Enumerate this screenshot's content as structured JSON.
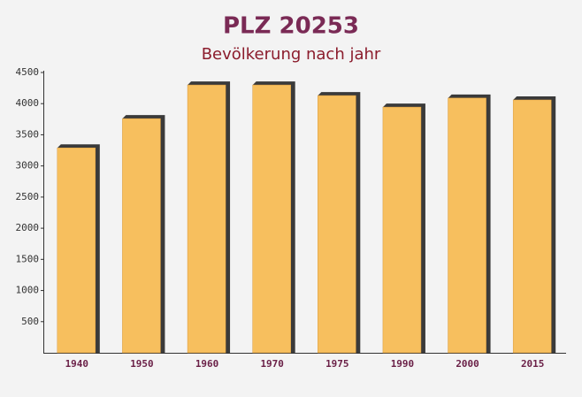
{
  "chart_data": {
    "type": "bar",
    "title": "PLZ 20253",
    "subtitle": "Bevölkerung nach jahr",
    "categories": [
      "1940",
      "1950",
      "1960",
      "1970",
      "1975",
      "1990",
      "2000",
      "2015"
    ],
    "values": [
      3290,
      3760,
      4300,
      4300,
      4130,
      3945,
      4090,
      4060
    ],
    "color": "#f7bf5e",
    "ylim": [
      0,
      4500
    ],
    "yticks": [
      500,
      1000,
      1500,
      2000,
      2500,
      3000,
      3500,
      4000,
      4500
    ],
    "grid": false
  }
}
